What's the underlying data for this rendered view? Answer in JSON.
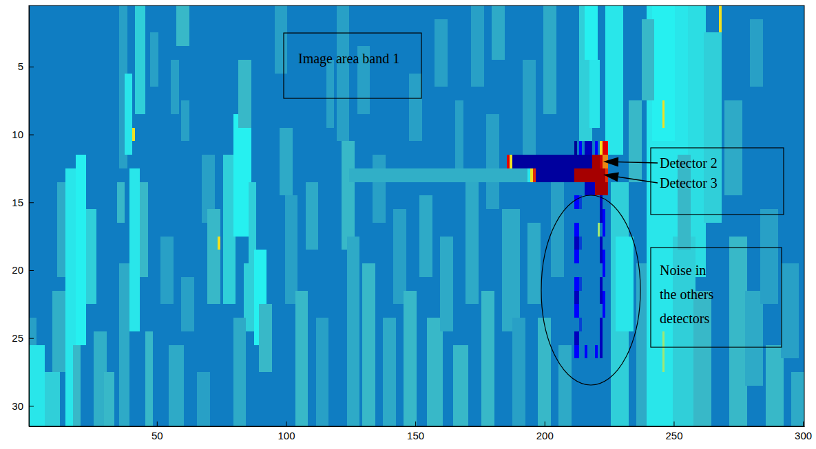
{
  "chart_data": {
    "type": "heatmap",
    "xlim": [
      0.5,
      300.5
    ],
    "ylim": [
      0.5,
      31.5
    ],
    "xticks": [
      50,
      100,
      150,
      200,
      250,
      300
    ],
    "yticks": [
      5,
      10,
      15,
      20,
      25,
      30
    ],
    "zlim": [
      0,
      1
    ],
    "grid": false,
    "annotations": [
      {
        "text": "Image area band 1"
      },
      {
        "text": "Detector 2"
      },
      {
        "text": "Detector 3"
      },
      {
        "lines": [
          "Noise in",
          "the others",
          "detectors"
        ]
      }
    ],
    "cells": [
      [
        1,
        300,
        1,
        31,
        0.375
      ],
      [
        1,
        6,
        26,
        31,
        0.6
      ],
      [
        7,
        12,
        28,
        31,
        0.55
      ],
      [
        1,
        3,
        24,
        25,
        0.45
      ],
      [
        10,
        14,
        22,
        27,
        0.48
      ],
      [
        15,
        18,
        13,
        31,
        0.6
      ],
      [
        19,
        22,
        12,
        25,
        0.62
      ],
      [
        18,
        20,
        26,
        31,
        0.5
      ],
      [
        23,
        26,
        16,
        22,
        0.55
      ],
      [
        12,
        14,
        14,
        20,
        0.47
      ],
      [
        26,
        30,
        25,
        31,
        0.48
      ],
      [
        30,
        33,
        28,
        31,
        0.5
      ],
      [
        36,
        38,
        1,
        12,
        0.45
      ],
      [
        38,
        40,
        6,
        11,
        0.6
      ],
      [
        41,
        41,
        10,
        10,
        0.75
      ],
      [
        42,
        45,
        1,
        8,
        0.55
      ],
      [
        40,
        43,
        13,
        24,
        0.6
      ],
      [
        44,
        46,
        14,
        20,
        0.5
      ],
      [
        36,
        39,
        20,
        31,
        0.47
      ],
      [
        46,
        48,
        25,
        31,
        0.5
      ],
      [
        48,
        50,
        3,
        6,
        0.45
      ],
      [
        35,
        37,
        14,
        16,
        0.5
      ],
      [
        52,
        56,
        18,
        22,
        0.45
      ],
      [
        56,
        58,
        5,
        8,
        0.45
      ],
      [
        58,
        62,
        1,
        3,
        0.5
      ],
      [
        60,
        62,
        8,
        10,
        0.45
      ],
      [
        55,
        60,
        26,
        31,
        0.47
      ],
      [
        60,
        64,
        21,
        24,
        0.45
      ],
      [
        66,
        70,
        28,
        31,
        0.45
      ],
      [
        68,
        72,
        12,
        16,
        0.45
      ],
      [
        70,
        74,
        16,
        22,
        0.5
      ],
      [
        74,
        74,
        18,
        18,
        0.75
      ],
      [
        76,
        80,
        12,
        22,
        0.55
      ],
      [
        80,
        86,
        9,
        17,
        0.62
      ],
      [
        82,
        86,
        5,
        9,
        0.5
      ],
      [
        86,
        88,
        14,
        19,
        0.55
      ],
      [
        84,
        88,
        20,
        24,
        0.55
      ],
      [
        88,
        92,
        19,
        25,
        0.62
      ],
      [
        90,
        94,
        23,
        27,
        0.5
      ],
      [
        80,
        84,
        24,
        31,
        0.47
      ],
      [
        96,
        100,
        1,
        5,
        0.45
      ],
      [
        98,
        102,
        10,
        14,
        0.47
      ],
      [
        100,
        104,
        15,
        22,
        0.45
      ],
      [
        104,
        108,
        22,
        31,
        0.5
      ],
      [
        108,
        112,
        14,
        18,
        0.47
      ],
      [
        112,
        116,
        24,
        31,
        0.45
      ],
      [
        116,
        118,
        5,
        9,
        0.45
      ],
      [
        120,
        124,
        1,
        10,
        0.45
      ],
      [
        122,
        126,
        11,
        18,
        0.5
      ],
      [
        124,
        128,
        18,
        31,
        0.47
      ],
      [
        128,
        132,
        4,
        8,
        0.45
      ],
      [
        130,
        134,
        20,
        31,
        0.5
      ],
      [
        134,
        138,
        12,
        16,
        0.45
      ],
      [
        138,
        142,
        24,
        31,
        0.47
      ],
      [
        142,
        146,
        16,
        22,
        0.45
      ],
      [
        146,
        150,
        22,
        31,
        0.5
      ],
      [
        148,
        152,
        6,
        10,
        0.45
      ],
      [
        152,
        156,
        15,
        20,
        0.47
      ],
      [
        155,
        160,
        24,
        31,
        0.5
      ],
      [
        158,
        162,
        2,
        6,
        0.45
      ],
      [
        160,
        164,
        18,
        24,
        0.47
      ],
      [
        165,
        170,
        26,
        31,
        0.5
      ],
      [
        166,
        168,
        8,
        12,
        0.45
      ],
      [
        170,
        174,
        14,
        22,
        0.47
      ],
      [
        172,
        176,
        1,
        6,
        0.45
      ],
      [
        176,
        180,
        22,
        31,
        0.5
      ],
      [
        178,
        182,
        9,
        15,
        0.45
      ],
      [
        180,
        184,
        1,
        4,
        0.47
      ],
      [
        184,
        190,
        16,
        24,
        0.47
      ],
      [
        188,
        192,
        24,
        31,
        0.45
      ],
      [
        192,
        196,
        5,
        11,
        0.45
      ],
      [
        194,
        198,
        17,
        22,
        0.47
      ],
      [
        198,
        202,
        24,
        31,
        0.5
      ],
      [
        200,
        204,
        1,
        8,
        0.47
      ],
      [
        203,
        207,
        14,
        20,
        0.45
      ],
      [
        206,
        210,
        26,
        31,
        0.47
      ],
      [
        214,
        218,
        1,
        10,
        0.55
      ],
      [
        216,
        220,
        1,
        4,
        0.62
      ],
      [
        218,
        221,
        5,
        9,
        0.6
      ],
      [
        224,
        230,
        1,
        11,
        0.6
      ],
      [
        226,
        232,
        14,
        31,
        0.55
      ],
      [
        228,
        234,
        18,
        24,
        0.6
      ],
      [
        233,
        237,
        8,
        13,
        0.5
      ],
      [
        236,
        240,
        20,
        31,
        0.47
      ],
      [
        240,
        256,
        1,
        31,
        0.6
      ],
      [
        242,
        250,
        1,
        10,
        0.62
      ],
      [
        256,
        262,
        1,
        20,
        0.58
      ],
      [
        262,
        268,
        3,
        16,
        0.55
      ],
      [
        250,
        258,
        18,
        31,
        0.55
      ],
      [
        258,
        264,
        22,
        31,
        0.5
      ],
      [
        246,
        246,
        8,
        9,
        0.75
      ],
      [
        268,
        268,
        1,
        2,
        0.75
      ],
      [
        246,
        246,
        25,
        27,
        0.7
      ],
      [
        238,
        242,
        2,
        7,
        0.5
      ],
      [
        252,
        256,
        12,
        18,
        0.5
      ],
      [
        270,
        276,
        8,
        14,
        0.47
      ],
      [
        272,
        278,
        18,
        31,
        0.5
      ],
      [
        278,
        284,
        22,
        28,
        0.47
      ],
      [
        284,
        290,
        16,
        22,
        0.45
      ],
      [
        286,
        292,
        26,
        31,
        0.5
      ],
      [
        292,
        298,
        20,
        26,
        0.45
      ],
      [
        296,
        300,
        28,
        31,
        0.47
      ],
      [
        280,
        284,
        2,
        6,
        0.45
      ],
      [
        212,
        212,
        11,
        11,
        0.02
      ],
      [
        214,
        214,
        11,
        11,
        0.125
      ],
      [
        216,
        218,
        11,
        11,
        0.06
      ],
      [
        220,
        220,
        11,
        11,
        0.125
      ],
      [
        222,
        222,
        11,
        11,
        0.75
      ],
      [
        223,
        224,
        11,
        11,
        0.875
      ],
      [
        225,
        226,
        11,
        11,
        0.6
      ],
      [
        186,
        186,
        12,
        12,
        0.875
      ],
      [
        187,
        187,
        12,
        12,
        0.75
      ],
      [
        188,
        218,
        12,
        12,
        0.03
      ],
      [
        219,
        221,
        12,
        12,
        0.95
      ],
      [
        222,
        222,
        12,
        12,
        0.9
      ],
      [
        223,
        224,
        12,
        12,
        0.8
      ],
      [
        125,
        193,
        13,
        13,
        0.48
      ],
      [
        194,
        194,
        13,
        13,
        0.6
      ],
      [
        195,
        195,
        13,
        13,
        0.75
      ],
      [
        196,
        196,
        13,
        13,
        0.85
      ],
      [
        197,
        211,
        13,
        13,
        0.03
      ],
      [
        212,
        223,
        13,
        13,
        0.95
      ],
      [
        224,
        224,
        13,
        13,
        0.85
      ],
      [
        216,
        219,
        14,
        14,
        0.06
      ],
      [
        220,
        224,
        14,
        14,
        0.95
      ],
      [
        212,
        213,
        15,
        15,
        0.125
      ],
      [
        212,
        213,
        17,
        17,
        0.125
      ],
      [
        212,
        213,
        18,
        18,
        0.06
      ],
      [
        212,
        213,
        19,
        19,
        0.125
      ],
      [
        212,
        213,
        21,
        21,
        0.125
      ],
      [
        212,
        213,
        22,
        22,
        0.06
      ],
      [
        212,
        213,
        23,
        23,
        0.125
      ],
      [
        212,
        213,
        25,
        25,
        0.06
      ],
      [
        212,
        213,
        26,
        26,
        0.125
      ],
      [
        214,
        214,
        15,
        15,
        0.2
      ],
      [
        214,
        214,
        18,
        18,
        0.2
      ],
      [
        214,
        214,
        21,
        21,
        0.2
      ],
      [
        214,
        214,
        24,
        24,
        0.2
      ],
      [
        222,
        222,
        15,
        16,
        0.06
      ],
      [
        222,
        222,
        18,
        19,
        0.06
      ],
      [
        222,
        222,
        21,
        22,
        0.06
      ],
      [
        222,
        222,
        24,
        26,
        0.06
      ],
      [
        221,
        221,
        17,
        17,
        0.7
      ],
      [
        223,
        223,
        16,
        17,
        0.125
      ],
      [
        223,
        223,
        19,
        20,
        0.125
      ],
      [
        223,
        223,
        22,
        23,
        0.125
      ],
      [
        216,
        216,
        26,
        26,
        0.125
      ],
      [
        220,
        220,
        26,
        26,
        0.125
      ]
    ]
  }
}
